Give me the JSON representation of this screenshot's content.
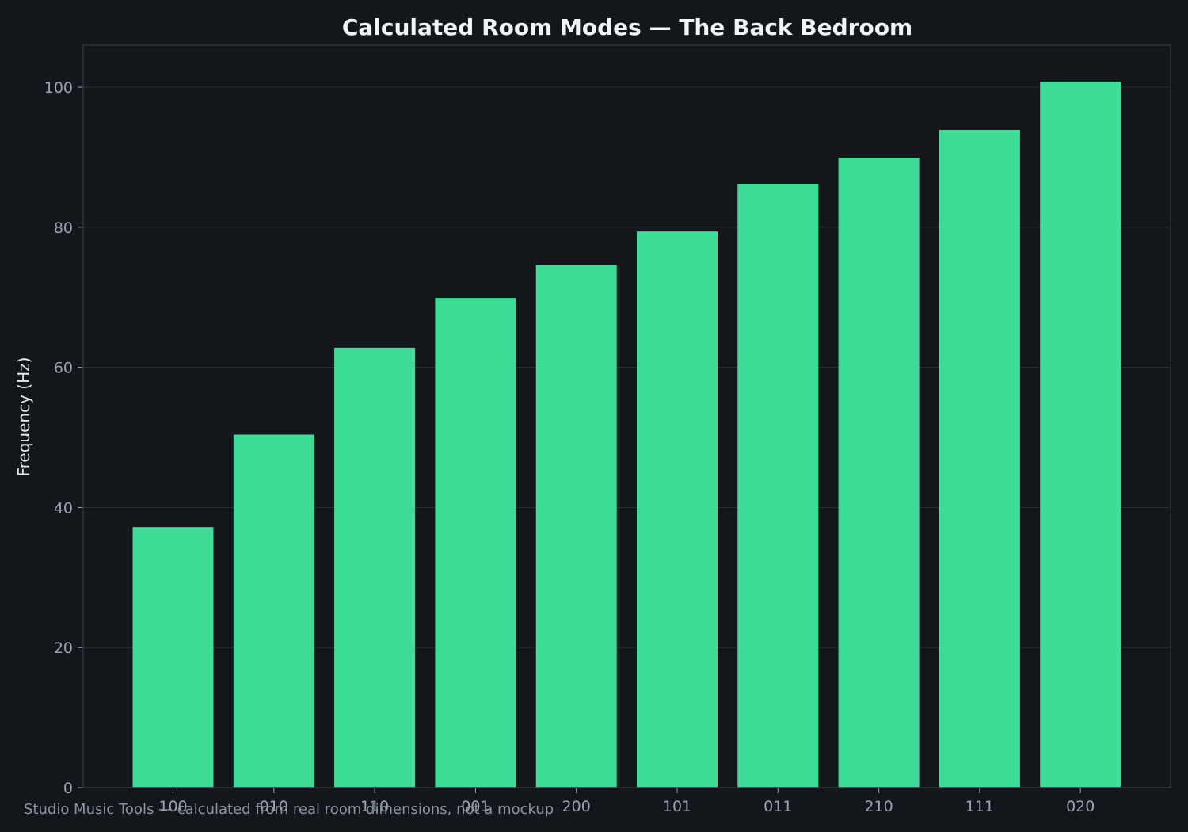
{
  "chart_data": {
    "type": "bar",
    "title": "Calculated Room Modes — The Back Bedroom",
    "xlabel": "",
    "ylabel": "Frequency (Hz)",
    "categories": [
      "100",
      "010",
      "110",
      "001",
      "200",
      "101",
      "011",
      "210",
      "111",
      "020"
    ],
    "values": [
      37.2,
      50.4,
      62.8,
      69.9,
      74.6,
      79.4,
      86.2,
      89.9,
      93.9,
      100.8
    ],
    "ylim": [
      0,
      106
    ],
    "yticks": [
      0,
      20,
      40,
      60,
      80,
      100
    ],
    "grid": true,
    "legend": "none",
    "colors": {
      "bar": "#3ddc97",
      "background": "#13161b",
      "grid": "#2a2f36",
      "frame": "#2f343b"
    }
  },
  "footer": {
    "note": "Studio Music Tools — calculated from real room dimensions, not a mockup"
  }
}
